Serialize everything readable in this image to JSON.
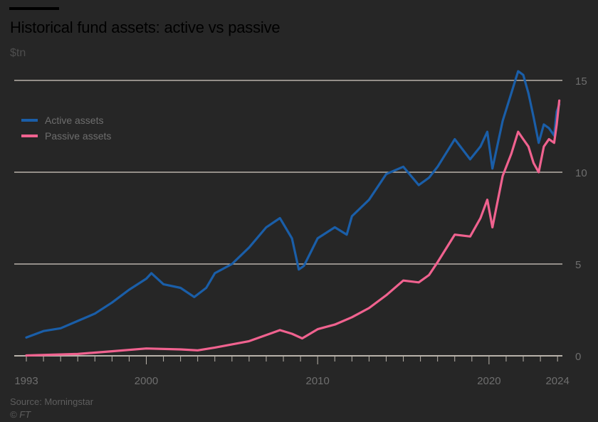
{
  "chart_data": {
    "type": "line",
    "title": "Historical fund assets: active vs passive",
    "ylabel": "$tn",
    "xlabel": "",
    "ylim": [
      0,
      15
    ],
    "xlim": [
      1993,
      2024
    ],
    "yticks": [
      "0",
      "5",
      "10",
      "15"
    ],
    "xticks": [
      "1993",
      "2000",
      "2010",
      "2020",
      "2024"
    ],
    "grid": true,
    "legend_placement": "top-left",
    "source": "Source: Morningstar",
    "copyright": "© FT",
    "series": [
      {
        "name": "Active assets",
        "color": "#1a5ea8",
        "x": [
          1993,
          1994,
          1995,
          1996,
          1997,
          1998,
          1999,
          2000,
          2000.3,
          2001,
          2002,
          2002.8,
          2003.5,
          2004,
          2005,
          2006,
          2007,
          2007.8,
          2008.5,
          2008.9,
          2009.2,
          2010,
          2011,
          2011.7,
          2012,
          2013,
          2014,
          2015,
          2015.9,
          2016.5,
          2017,
          2018,
          2018.9,
          2019.5,
          2019.9,
          2020.2,
          2020.8,
          2021.3,
          2021.7,
          2022.0,
          2022.3,
          2022.6,
          2022.9,
          2023.2,
          2023.5,
          2023.8,
          2023.95,
          2024.1
        ],
        "values": [
          1.0,
          1.35,
          1.5,
          1.9,
          2.3,
          2.9,
          3.6,
          4.2,
          4.5,
          3.9,
          3.7,
          3.2,
          3.7,
          4.5,
          5.0,
          5.9,
          7.0,
          7.5,
          6.4,
          4.7,
          4.9,
          6.4,
          7.0,
          6.6,
          7.6,
          8.5,
          9.9,
          10.3,
          9.3,
          9.7,
          10.3,
          11.8,
          10.7,
          11.4,
          12.2,
          10.2,
          12.8,
          14.3,
          15.5,
          15.3,
          14.3,
          13.0,
          11.6,
          12.6,
          12.4,
          12.0,
          13.3,
          13.7
        ]
      },
      {
        "name": "Passive assets",
        "color": "#f0628f",
        "x": [
          1993,
          1996,
          1998,
          2000,
          2002,
          2003,
          2004,
          2006,
          2007.8,
          2008.5,
          2009.1,
          2010,
          2011,
          2012,
          2013,
          2014,
          2015,
          2015.9,
          2016.5,
          2017,
          2018,
          2018.9,
          2019.5,
          2019.9,
          2020.2,
          2020.8,
          2021.3,
          2021.7,
          2022.0,
          2022.3,
          2022.6,
          2022.9,
          2023.2,
          2023.5,
          2023.8,
          2023.95,
          2024.1
        ],
        "values": [
          0.02,
          0.1,
          0.25,
          0.4,
          0.35,
          0.3,
          0.45,
          0.8,
          1.4,
          1.2,
          0.95,
          1.45,
          1.7,
          2.1,
          2.6,
          3.3,
          4.1,
          4.0,
          4.4,
          5.1,
          6.6,
          6.5,
          7.5,
          8.5,
          7.0,
          9.8,
          11.0,
          12.2,
          11.8,
          11.4,
          10.5,
          10.0,
          11.4,
          11.8,
          11.6,
          12.6,
          13.9
        ]
      }
    ]
  }
}
